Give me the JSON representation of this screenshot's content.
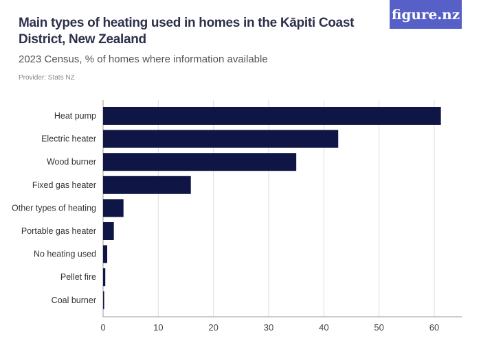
{
  "title": "Main types of heating used in homes in the Kāpiti Coast District, New Zealand",
  "subtitle": "2023 Census, % of homes where information available",
  "provider": "Provider: Stats NZ",
  "logo": "figure.nz",
  "chart_data": {
    "type": "bar",
    "orientation": "horizontal",
    "categories": [
      "Heat pump",
      "Electric heater",
      "Wood burner",
      "Fixed gas heater",
      "Other types of heating",
      "Portable gas heater",
      "No heating used",
      "Pellet fire",
      "Coal burner"
    ],
    "values": [
      61.2,
      42.6,
      35.0,
      15.9,
      3.7,
      1.95,
      0.75,
      0.4,
      0.2
    ],
    "xlim": [
      0,
      65
    ],
    "xticks": [
      0,
      10,
      20,
      30,
      40,
      50,
      60
    ],
    "bar_color": "#0f1544",
    "grid": true
  }
}
